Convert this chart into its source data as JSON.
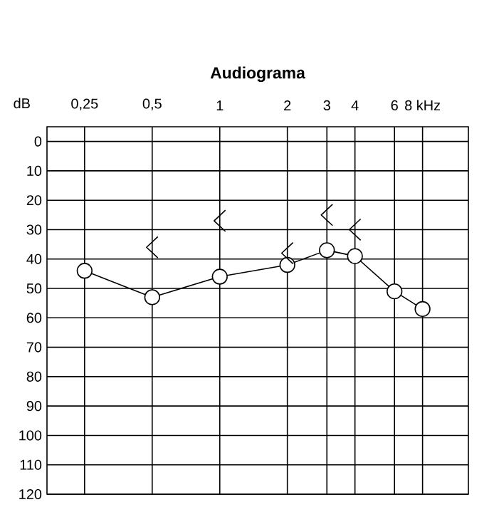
{
  "chart_data": {
    "type": "line",
    "title": "Audiograma",
    "ylabel": "dB",
    "x": [
      0.25,
      0.5,
      1,
      2,
      3,
      4,
      6,
      8
    ],
    "series": [
      {
        "color": "#000000",
        "marker": "circle",
        "line_style": "solid",
        "values": [
          44,
          53,
          46,
          42,
          37,
          39,
          51,
          57
        ]
      },
      {
        "type": "scatter",
        "color": "#000000",
        "x": [
          0.5,
          1,
          2,
          3,
          4
        ],
        "values": [
          36,
          27,
          38,
          25,
          30
        ]
      }
    ],
    "log": "x",
    "xlim": [
      0.17,
      12.8
    ],
    "ylim": [
      120,
      -5
    ],
    "xticks": [
      {
        "value": 0.25,
        "label": "0,25"
      },
      {
        "value": 0.5,
        "label": "0,5"
      },
      1,
      2,
      3,
      4,
      6,
      {
        "value": 8,
        "label": "8 kHz"
      }
    ],
    "yticks": [
      0,
      10,
      20,
      30,
      40,
      50,
      60,
      70,
      80,
      90,
      100,
      110,
      120
    ],
    "grid": true
  }
}
